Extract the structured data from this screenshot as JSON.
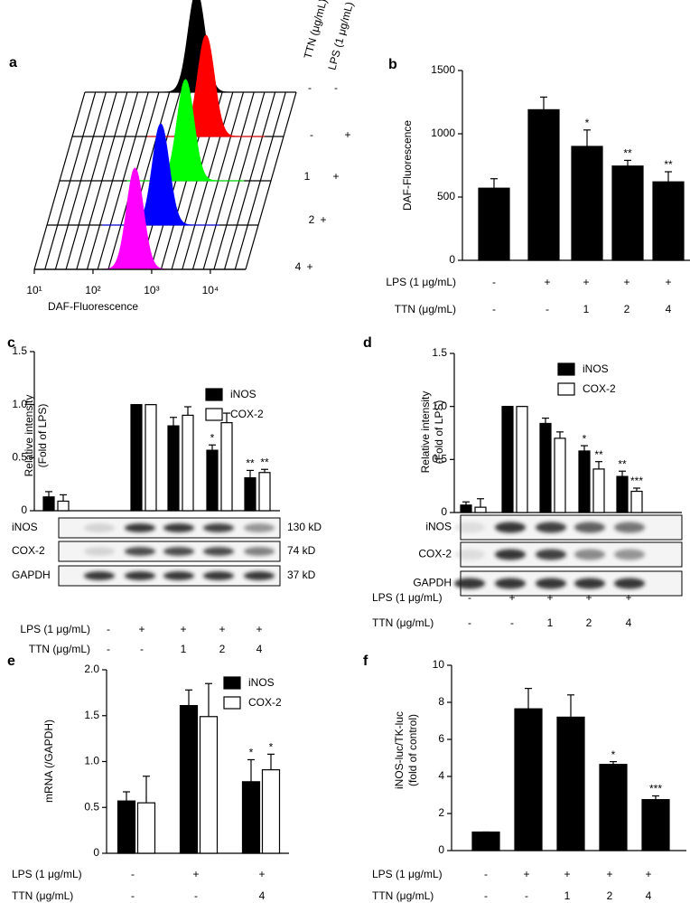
{
  "chart_data": [
    {
      "type": "histogram-overlay",
      "panel": "a",
      "xlabel": "DAF-Fluorescence",
      "xlog": true,
      "xlim": [
        10,
        40000
      ],
      "xticks": [
        {
          "value": 10,
          "label": "10¹"
        },
        {
          "value": 100,
          "label": "10²"
        },
        {
          "value": 1000,
          "label": "10³"
        },
        {
          "value": 10000,
          "label": "10⁴"
        }
      ],
      "condition_headers": [
        "TTN (μg/mL)",
        "LPS (1 μg/mL)"
      ],
      "series": [
        {
          "color": "#000000",
          "peak": 800,
          "conditions": [
            "-",
            "-"
          ]
        },
        {
          "color": "#ff0000",
          "peak": 1900,
          "conditions": [
            "-",
            "+"
          ]
        },
        {
          "color": "#00ff00",
          "peak": 1400,
          "conditions": [
            "1",
            "+"
          ]
        },
        {
          "color": "#0000ff",
          "peak": 870,
          "conditions": [
            "2",
            "+"
          ]
        },
        {
          "color": "#ff00ff",
          "peak": 520,
          "conditions": [
            "4",
            "+"
          ]
        }
      ]
    },
    {
      "type": "bar",
      "panel": "b",
      "ylabel": "DAF-Fluorescence",
      "ylim": [
        0,
        1500
      ],
      "yticks": [
        0,
        500,
        1000,
        1500
      ],
      "series": [
        {
          "color": "#000000",
          "values": [
            570,
            1190,
            900,
            745,
            620
          ],
          "errors": [
            75,
            100,
            130,
            45,
            80
          ],
          "annotations": [
            null,
            null,
            "*",
            "**",
            "**"
          ]
        }
      ],
      "conditions": [
        {
          "label": "LPS (1 μg/mL)",
          "values": [
            "-",
            "+",
            "+",
            "+",
            "+"
          ]
        },
        {
          "label": "TTN (μg/mL)",
          "values": [
            "-",
            "-",
            "1",
            "2",
            "4"
          ]
        }
      ]
    },
    {
      "type": "bar",
      "panel": "c",
      "ylabel": [
        "Relative intensity",
        "(Fold of LPS)"
      ],
      "ylim": [
        0,
        1.5
      ],
      "yticks": [
        0,
        0.5,
        {
          "value": 1,
          "label": "1.0"
        },
        1.5
      ],
      "series": [
        {
          "name": "iNOS",
          "color": "#000000",
          "values": [
            0.13,
            1.0,
            0.8,
            0.57,
            0.31
          ],
          "errors": [
            0.05,
            0,
            0.08,
            0.05,
            0.07
          ],
          "annotations": [
            null,
            null,
            null,
            "*",
            "**"
          ]
        },
        {
          "name": "COX-2",
          "color": "#ffffff",
          "values": [
            0.09,
            1.0,
            0.9,
            0.83,
            0.36
          ],
          "errors": [
            0.06,
            0,
            0.08,
            0.09,
            0.03
          ],
          "annotations": [
            null,
            null,
            null,
            null,
            "**"
          ]
        }
      ],
      "blot": [
        {
          "label": "iNOS",
          "size": "130 kD"
        },
        {
          "label": "COX-2",
          "size": "74 kD"
        },
        {
          "label": "GAPDH",
          "size": "37 kD"
        }
      ],
      "conditions": [
        {
          "label": "LPS (1 μg/mL)",
          "values": [
            "-",
            "+",
            "+",
            "+",
            "+"
          ]
        },
        {
          "label": "TTN (μg/mL)",
          "values": [
            "-",
            "-",
            "1",
            "2",
            "4"
          ]
        }
      ]
    },
    {
      "type": "bar",
      "panel": "d",
      "ylabel": [
        "Relative intensity",
        "(Fold of LPS)"
      ],
      "ylim": [
        0,
        1.5
      ],
      "yticks": [
        0,
        0.5,
        {
          "value": 1,
          "label": "1.0"
        },
        1.5
      ],
      "series": [
        {
          "name": "iNOS",
          "color": "#000000",
          "values": [
            0.07,
            1.0,
            0.84,
            0.58,
            0.34
          ],
          "errors": [
            0.03,
            0,
            0.05,
            0.05,
            0.05
          ],
          "annotations": [
            null,
            null,
            null,
            "*",
            "**"
          ]
        },
        {
          "name": "COX-2",
          "color": "#ffffff",
          "values": [
            0.05,
            1.0,
            0.7,
            0.41,
            0.2
          ],
          "errors": [
            0.08,
            0,
            0.06,
            0.07,
            0.03
          ],
          "annotations": [
            null,
            null,
            null,
            "**",
            "***"
          ]
        }
      ],
      "blot": [
        {
          "label": "iNOS"
        },
        {
          "label": "COX-2"
        },
        {
          "label": "GAPDH"
        }
      ],
      "conditions": [
        {
          "label": "LPS (1 μg/mL)",
          "values": [
            "-",
            "+",
            "+",
            "+",
            "+"
          ]
        },
        {
          "label": "TTN (μg/mL)",
          "values": [
            "-",
            "-",
            "1",
            "2",
            "4"
          ]
        }
      ]
    },
    {
      "type": "bar",
      "panel": "e",
      "ylabel": "mRNA (/GAPDH)",
      "ylim": [
        0,
        2
      ],
      "yticks": [
        0,
        0.5,
        {
          "value": 1,
          "label": "1.0"
        },
        1.5,
        {
          "value": 2,
          "label": "2.0"
        }
      ],
      "series": [
        {
          "name": "iNOS",
          "color": "#000000",
          "values": [
            0.57,
            1.61,
            0.78
          ],
          "errors": [
            0.1,
            0.17,
            0.24
          ],
          "annotations": [
            null,
            null,
            "*"
          ]
        },
        {
          "name": "COX-2",
          "color": "#ffffff",
          "values": [
            0.55,
            1.49,
            0.91
          ],
          "errors": [
            0.29,
            0.36,
            0.17
          ],
          "annotations": [
            null,
            null,
            "*"
          ]
        }
      ],
      "conditions": [
        {
          "label": "LPS (1 μg/mL)",
          "values": [
            "-",
            "+",
            "+"
          ]
        },
        {
          "label": "TTN (μg/mL)",
          "values": [
            "-",
            "-",
            "4"
          ]
        }
      ]
    },
    {
      "type": "bar",
      "panel": "f",
      "ylabel": [
        "iNOS-luc/TK-luc",
        "(fold of control)"
      ],
      "ylim": [
        0,
        10
      ],
      "yticks": [
        0,
        2,
        4,
        6,
        8,
        10
      ],
      "series": [
        {
          "color": "#000000",
          "values": [
            1,
            7.65,
            7.2,
            4.65,
            2.75
          ],
          "errors": [
            0,
            1.1,
            1.2,
            0.15,
            0.2
          ],
          "annotations": [
            null,
            null,
            null,
            "*",
            "***"
          ]
        }
      ],
      "conditions": [
        {
          "label": "LPS (1 μg/mL)",
          "values": [
            "-",
            "+",
            "+",
            "+",
            "+"
          ]
        },
        {
          "label": "TTN (μg/mL)",
          "values": [
            "-",
            "-",
            "1",
            "2",
            "4"
          ]
        }
      ]
    }
  ]
}
